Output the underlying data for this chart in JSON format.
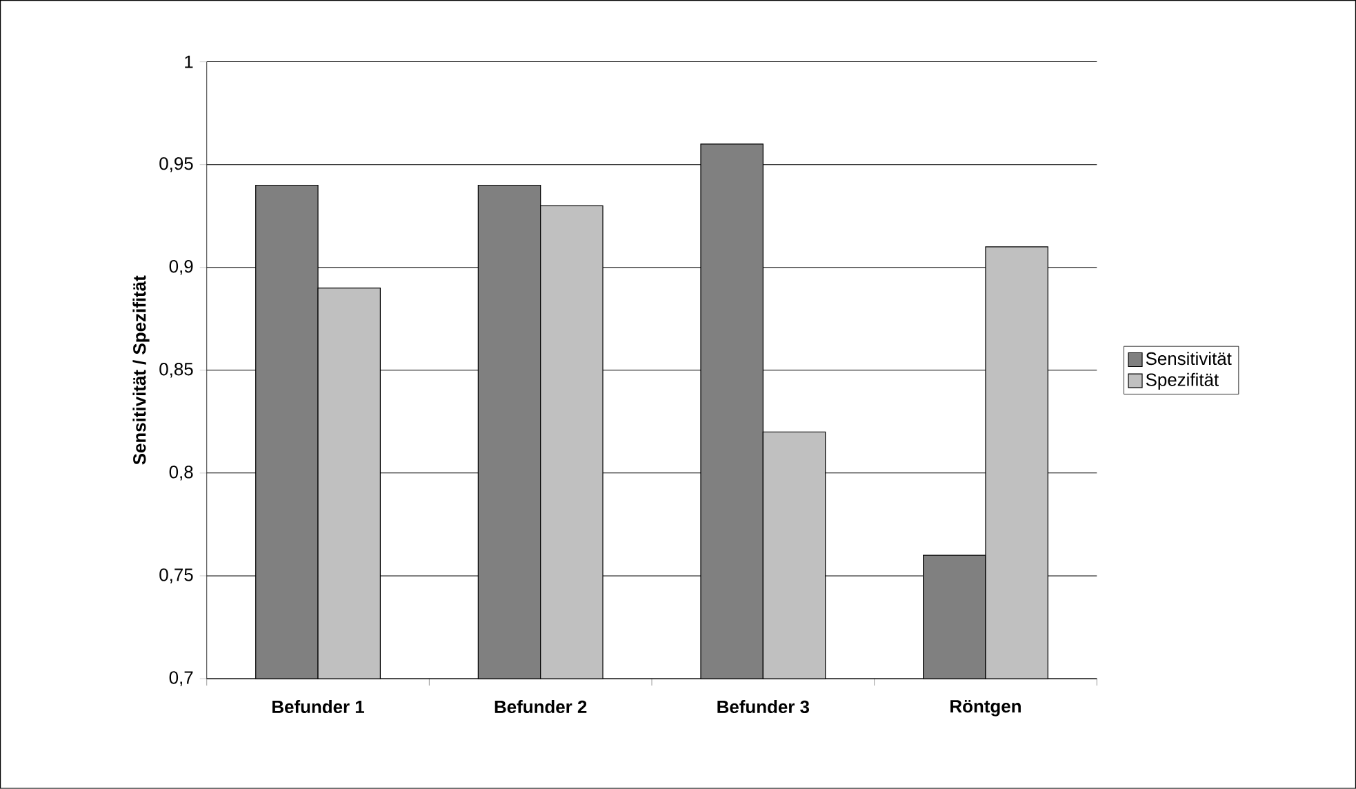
{
  "chart_data": {
    "type": "bar",
    "ylabel": "Sensitivität / Spezifität",
    "categories": [
      "Befunder 1",
      "Befunder 2",
      "Befunder 3",
      "Röntgen"
    ],
    "series": [
      {
        "name": "Sensitivität",
        "color": "#808080",
        "values": [
          0.94,
          0.94,
          0.96,
          0.76
        ]
      },
      {
        "name": "Spezifität",
        "color": "#c0c0c0",
        "values": [
          0.89,
          0.93,
          0.82,
          0.91
        ]
      }
    ],
    "ylim": [
      0.7,
      1
    ],
    "yticks": [
      {
        "value": 0.7,
        "label": "0,7"
      },
      {
        "value": 0.75,
        "label": "0,75"
      },
      {
        "value": 0.8,
        "label": "0,8"
      },
      {
        "value": 0.85,
        "label": "0,85"
      },
      {
        "value": 0.9,
        "label": "0,9"
      },
      {
        "value": 0.95,
        "label": "0,95"
      },
      1
    ],
    "grid": "y",
    "legend": "right"
  }
}
